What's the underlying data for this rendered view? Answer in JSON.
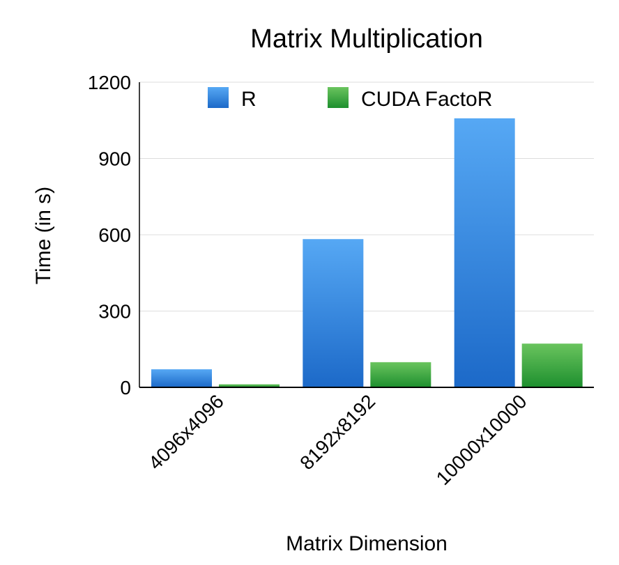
{
  "chart_data": {
    "type": "bar",
    "title": "Matrix Multiplication",
    "xlabel": "Matrix Dimension",
    "ylabel": "Time (in s)",
    "categories": [
      "4096x4096",
      "8192x8192",
      "10000x10000"
    ],
    "series": [
      {
        "name": "R",
        "values": [
          71,
          583,
          1058
        ]
      },
      {
        "name": "CUDA FactoR",
        "values": [
          12,
          99,
          172
        ]
      }
    ],
    "ylim": [
      0,
      1200
    ],
    "yticks": [
      0,
      300,
      600,
      900,
      1200
    ],
    "grid": true,
    "legend_position": "top",
    "colors": {
      "R_top": "#56a8f4",
      "R_bottom": "#1c69c8",
      "CUDA_top": "#6ac45e",
      "CUDA_bottom": "#1d8f2e",
      "grid": "#dddddd",
      "axis": "#000000"
    }
  }
}
